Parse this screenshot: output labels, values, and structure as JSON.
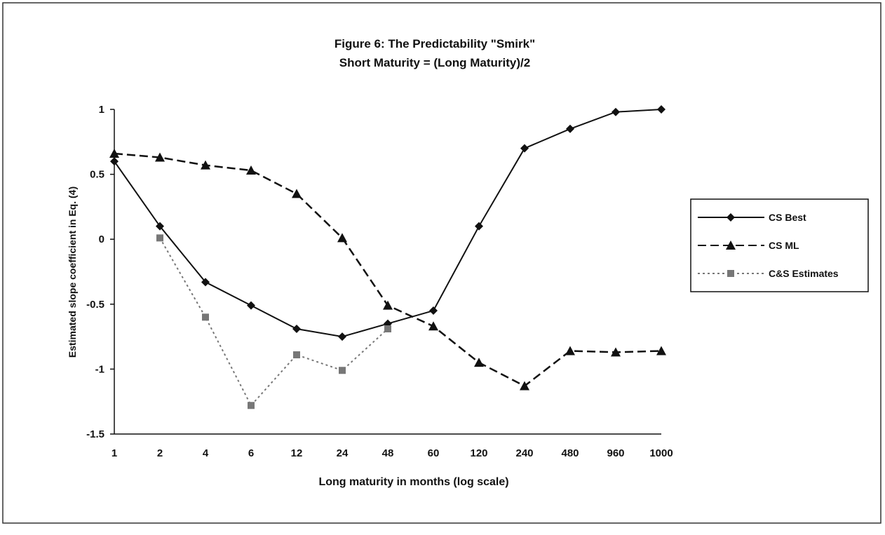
{
  "chart_data": {
    "type": "line",
    "title": "Figure 6:  The Predictability \"Smirk\"",
    "subtitle": "Short Maturity = (Long Maturity)/2",
    "x_label": "Long maturity in months (log scale)",
    "y_label": "Estimated slope coefficient in Eq. (4)",
    "categories": [
      "1",
      "2",
      "4",
      "6",
      "12",
      "24",
      "48",
      "60",
      "120",
      "240",
      "480",
      "960",
      "1000"
    ],
    "ylim": [
      -1.5,
      1
    ],
    "yticks": [
      -1.5,
      -1,
      -0.5,
      0,
      0.5,
      1
    ],
    "legend": "right",
    "series": [
      {
        "name": "CS Best",
        "color": "#111111",
        "dash": "solid",
        "marker": "diamond",
        "values": [
          0.6,
          0.1,
          -0.33,
          -0.51,
          -0.69,
          -0.75,
          -0.65,
          -0.55,
          0.1,
          0.7,
          0.85,
          0.98,
          1.0
        ]
      },
      {
        "name": "CS ML",
        "color": "#111111",
        "dash": "dashed",
        "marker": "triangle",
        "values": [
          0.66,
          0.63,
          0.57,
          0.53,
          0.35,
          0.01,
          -0.51,
          -0.67,
          -0.95,
          -1.13,
          -0.86,
          -0.87,
          -0.86
        ]
      },
      {
        "name": "C&S Estimates",
        "color": "#777777",
        "dash": "dotted",
        "marker": "square",
        "values": [
          null,
          0.01,
          -0.6,
          -1.28,
          -0.89,
          -1.01,
          -0.69,
          null,
          null,
          null,
          null,
          null,
          null
        ]
      }
    ]
  }
}
